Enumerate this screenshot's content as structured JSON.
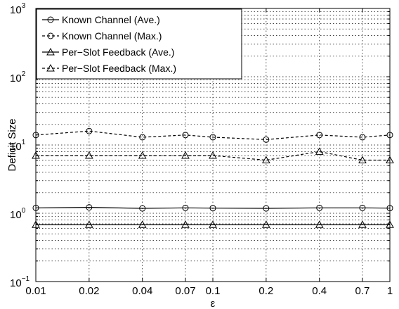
{
  "chart_data": {
    "type": "line",
    "title": "",
    "xlabel": "ε",
    "ylabel": "Deficit Size",
    "x_scale": "log",
    "y_scale": "log",
    "xlim": [
      0.01,
      1
    ],
    "ylim": [
      0.1,
      1000
    ],
    "grid": "dotted, x at each tick, y at decades and minor ticks 2–9",
    "legend_position": "top-left",
    "x": [
      0.01,
      0.02,
      0.04,
      0.07,
      0.1,
      0.2,
      0.4,
      0.7,
      1
    ],
    "x_tick_labels": [
      "0.01",
      "0.02",
      "0.04",
      "0.07",
      "0.1",
      "0.2",
      "0.4",
      "0.7",
      "1"
    ],
    "y_ticks": [
      {
        "value": 0.1,
        "base": "10",
        "exp": "−1"
      },
      {
        "value": 1,
        "base": "10",
        "exp": "0"
      },
      {
        "value": 10,
        "base": "10",
        "exp": "1"
      },
      {
        "value": 100,
        "base": "10",
        "exp": "2"
      },
      {
        "value": 1000,
        "base": "10",
        "exp": "3"
      }
    ],
    "series": [
      {
        "name": "Known Channel (Ave.)",
        "marker": "circle",
        "line": "solid",
        "values": [
          1.2,
          1.22,
          1.18,
          1.2,
          1.19,
          1.18,
          1.2,
          1.2,
          1.19
        ]
      },
      {
        "name": "Known Channel (Max.)",
        "marker": "circle",
        "line": "dashed",
        "values": [
          14,
          16,
          13,
          14,
          13,
          12,
          14,
          13,
          14
        ]
      },
      {
        "name": "Per−Slot Feedback (Ave.)",
        "marker": "triangle",
        "line": "solid",
        "values": [
          0.68,
          0.68,
          0.68,
          0.68,
          0.68,
          0.68,
          0.68,
          0.68,
          0.68
        ]
      },
      {
        "name": "Per−Slot Feedback (Max.)",
        "marker": "triangle",
        "line": "dashed",
        "values": [
          7,
          7,
          7,
          7,
          7,
          6,
          8,
          6,
          6
        ]
      }
    ]
  }
}
